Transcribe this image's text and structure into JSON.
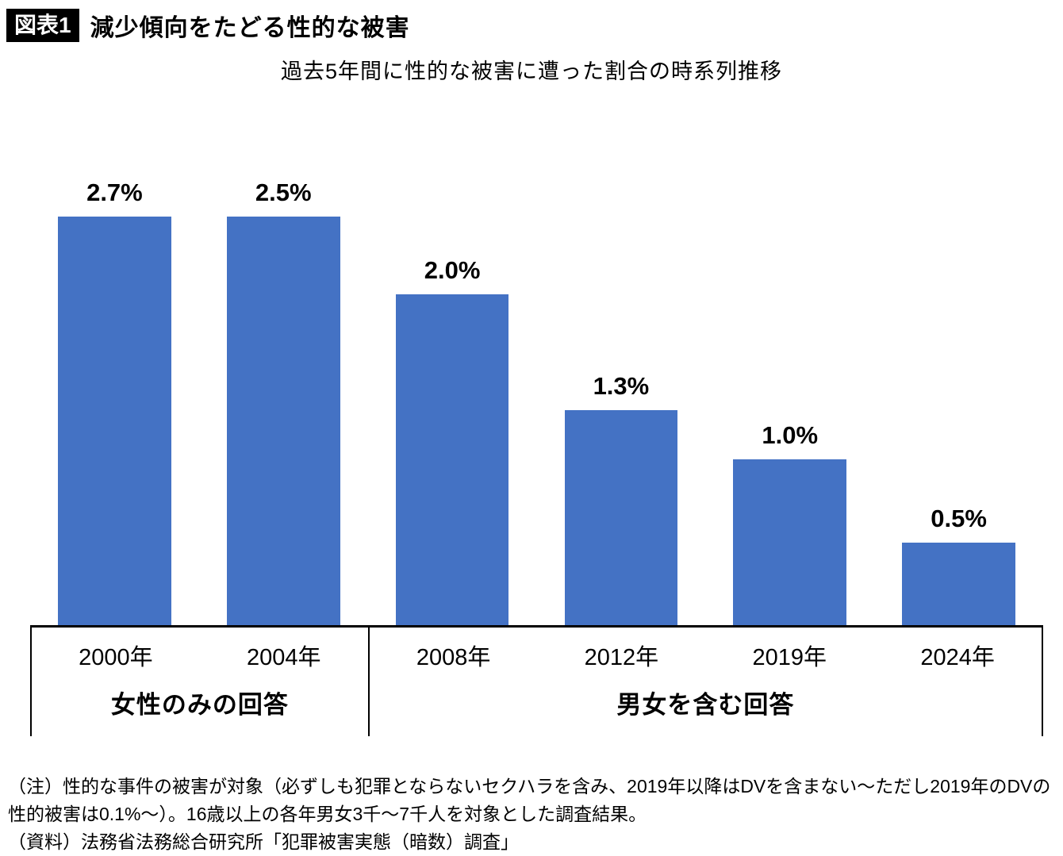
{
  "header": {
    "tag": "図表1",
    "title": "減少傾向をたどる性的な被害"
  },
  "chart_data": {
    "type": "bar",
    "title": "過去5年間に性的な被害に遭った割合の時系列推移",
    "categories": [
      "2000年",
      "2004年",
      "2008年",
      "2012年",
      "2019年",
      "2024年"
    ],
    "values": [
      2.7,
      2.5,
      2.0,
      1.3,
      1.0,
      0.5
    ],
    "value_labels": [
      "2.7%",
      "2.5%",
      "2.0%",
      "1.3%",
      "1.0%",
      "0.5%"
    ],
    "groups": [
      {
        "label": "女性のみの回答",
        "span": 2
      },
      {
        "label": "男女を含む回答",
        "span": 4
      }
    ],
    "bar_color": "#4472C4",
    "grid": false,
    "legend": false
  },
  "notes": {
    "note": "（注）性的な事件の被害が対象（必ずしも犯罪とならないセクハラを含み、2019年以降はDVを含まない〜ただし2019年のDVの性的被害は0.1%〜）。16歳以上の各年男女3千〜7千人を対象とした調査結果。",
    "source": "（資料）法務省法務総合研究所「犯罪被害実態（暗数）調査」"
  }
}
